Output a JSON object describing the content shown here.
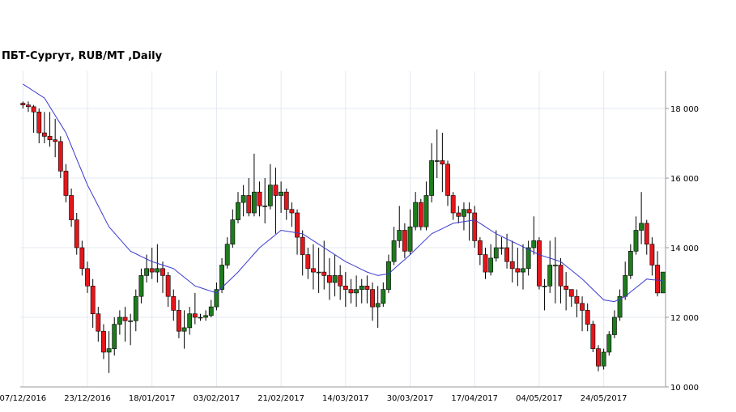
{
  "chart_data": {
    "type": "candlestick",
    "title": "ПБТ-Сургут,  RUB/MT ,Daily",
    "categories": [
      "07/12/2016",
      null,
      null,
      null,
      null,
      null,
      null,
      null,
      null,
      null,
      null,
      null,
      "23/12/2016",
      null,
      null,
      null,
      null,
      null,
      null,
      null,
      null,
      null,
      null,
      null,
      "18/01/2017",
      null,
      null,
      null,
      null,
      null,
      null,
      null,
      null,
      null,
      null,
      null,
      "03/02/2017",
      null,
      null,
      null,
      null,
      null,
      null,
      null,
      null,
      null,
      null,
      null,
      "21/02/2017",
      null,
      null,
      null,
      null,
      null,
      null,
      null,
      null,
      null,
      null,
      null,
      "14/03/2017",
      null,
      null,
      null,
      null,
      null,
      null,
      null,
      null,
      null,
      null,
      null,
      "30/03/2017",
      null,
      null,
      null,
      null,
      null,
      null,
      null,
      null,
      null,
      null,
      null,
      "17/04/2017",
      null,
      null,
      null,
      null,
      null,
      null,
      null,
      null,
      null,
      null,
      null,
      "04/05/2017",
      null,
      null,
      null,
      null,
      null,
      null,
      null,
      null,
      null,
      null,
      null,
      "24/05/2017",
      null,
      null,
      null,
      null,
      null,
      null,
      null,
      null,
      null,
      null,
      null
    ],
    "open": [
      18150,
      18100,
      18050,
      17900,
      17300,
      17200,
      17100,
      17050,
      16200,
      15500,
      14800,
      14000,
      13400,
      12900,
      12100,
      11600,
      11000,
      11100,
      11800,
      12000,
      11900,
      11900,
      12600,
      13200,
      13400,
      13300,
      13400,
      13200,
      12600,
      12200,
      11600,
      11700,
      12100,
      12000,
      12000,
      12050,
      12300,
      12800,
      13500,
      14100,
      14800,
      15300,
      15500,
      15000,
      15600,
      15200,
      15200,
      15800,
      15500,
      15600,
      15100,
      15000,
      14300,
      13800,
      13400,
      13300,
      13300,
      13200,
      13000,
      13200,
      12900,
      12800,
      12700,
      12800,
      12900,
      12800,
      12300,
      12400,
      12800,
      13600,
      14200,
      14500,
      13900,
      14600,
      15300,
      14600,
      15500,
      16500,
      16500,
      16400,
      15500,
      15000,
      14900,
      15100,
      15000,
      14200,
      13800,
      13300,
      13700,
      14000,
      14000,
      13600,
      13400,
      13300,
      13400,
      14000,
      14200,
      12900,
      12900,
      13500,
      13500,
      12900,
      12800,
      12600,
      12400,
      12200,
      11800,
      11100,
      10600,
      11000,
      11500,
      12000,
      12600,
      13200,
      13900,
      14500,
      14700,
      14100,
      13500,
      12700
    ],
    "high": [
      18200,
      18200,
      18100,
      18000,
      17900,
      17900,
      17700,
      17200,
      16400,
      15700,
      15000,
      14200,
      13600,
      13100,
      12300,
      11800,
      11600,
      12000,
      12200,
      12300,
      12100,
      12800,
      13400,
      13800,
      14000,
      14100,
      13600,
      13300,
      12800,
      12500,
      12200,
      12300,
      12700,
      12100,
      12200,
      12500,
      13000,
      13700,
      14300,
      15100,
      15600,
      15800,
      16000,
      16700,
      15900,
      16000,
      16400,
      16300,
      15900,
      15700,
      15300,
      15100,
      14500,
      14000,
      14100,
      14000,
      14200,
      13700,
      13800,
      13500,
      13300,
      13100,
      13200,
      13100,
      13200,
      13000,
      12900,
      13000,
      13800,
      14600,
      15200,
      14700,
      15100,
      15600,
      15400,
      15900,
      17000,
      17400,
      17300,
      16500,
      15600,
      15200,
      15300,
      15300,
      15200,
      14300,
      14000,
      14100,
      14500,
      14300,
      14400,
      14200,
      14000,
      14100,
      14200,
      14900,
      14300,
      13100,
      14200,
      14300,
      13700,
      13300,
      12800,
      12800,
      12600,
      12400,
      11900,
      11200,
      11100,
      11600,
      12200,
      12800,
      13600,
      14100,
      14900,
      15600,
      14800,
      14300,
      13900,
      13300
    ],
    "low": [
      18000,
      17900,
      17300,
      17000,
      17000,
      16900,
      16600,
      16000,
      15300,
      14600,
      13800,
      13200,
      12700,
      11700,
      11300,
      10800,
      10400,
      10900,
      11500,
      11300,
      11200,
      11600,
      12400,
      13000,
      13100,
      13000,
      12700,
      12300,
      11900,
      11400,
      11100,
      11500,
      11800,
      11900,
      11900,
      12000,
      12200,
      12700,
      13400,
      14000,
      14700,
      14900,
      14900,
      14900,
      14900,
      14700,
      15100,
      14400,
      15000,
      14800,
      14600,
      13800,
      13200,
      13100,
      12800,
      12700,
      12800,
      12500,
      12600,
      12500,
      12300,
      12400,
      12300,
      12400,
      12400,
      11900,
      11700,
      12300,
      12700,
      13500,
      14000,
      13700,
      13800,
      14500,
      14500,
      14500,
      15300,
      16000,
      15600,
      15200,
      14800,
      14700,
      14500,
      14200,
      14000,
      13500,
      13100,
      13200,
      13600,
      13800,
      13400,
      13000,
      12900,
      12800,
      13200,
      13800,
      12800,
      12200,
      12700,
      12400,
      12400,
      12200,
      12300,
      12000,
      11600,
      11600,
      11000,
      10450,
      10500,
      10900,
      11400,
      11900,
      12500,
      13100,
      13800,
      14100,
      13800,
      13200,
      12600,
      12700
    ],
    "close": [
      18100,
      18050,
      17900,
      17300,
      17200,
      17100,
      17050,
      16200,
      15500,
      14800,
      14000,
      13400,
      12900,
      12100,
      11600,
      11000,
      11100,
      11800,
      12000,
      11900,
      11900,
      12600,
      13200,
      13400,
      13300,
      13400,
      13200,
      12600,
      12200,
      11600,
      11700,
      12100,
      12000,
      12000,
      12050,
      12300,
      12800,
      13500,
      14100,
      14800,
      15300,
      15500,
      15000,
      15600,
      15200,
      15200,
      15800,
      15500,
      15600,
      15100,
      15000,
      14300,
      13800,
      13400,
      13300,
      13300,
      13200,
      13000,
      13200,
      12900,
      12800,
      12700,
      12800,
      12900,
      12800,
      12300,
      12400,
      12800,
      13600,
      14200,
      14500,
      13900,
      14600,
      15300,
      14600,
      15500,
      16500,
      16500,
      16400,
      15500,
      15000,
      14900,
      15100,
      15000,
      14200,
      13800,
      13300,
      13700,
      14000,
      14000,
      13600,
      13400,
      13300,
      13400,
      14000,
      14200,
      12900,
      12900,
      13500,
      13500,
      12900,
      12800,
      12600,
      12400,
      12200,
      11800,
      11100,
      10600,
      11000,
      11500,
      12000,
      12600,
      13200,
      13900,
      14500,
      14700,
      14100,
      13500,
      12700,
      13300
    ],
    "up_color": "#1e7b1e",
    "down_color": "#e3161b",
    "ma": {
      "color": "#3a3ad0",
      "values": [
        18700,
        18600,
        18500,
        18400,
        18300,
        18050,
        17800,
        17550,
        17300,
        16925,
        16550,
        16175,
        15800,
        15500,
        15200,
        14900,
        14600,
        14425,
        14250,
        14075,
        13900,
        13825,
        13750,
        13675,
        13600,
        13550,
        13500,
        13450,
        13400,
        13275,
        13150,
        13025,
        12900,
        12850,
        12800,
        12750,
        12700,
        12850,
        13000,
        13150,
        13300,
        13475,
        13650,
        13825,
        14000,
        14125,
        14250,
        14375,
        14500,
        14475,
        14450,
        14425,
        14400,
        14300,
        14200,
        14100,
        14000,
        13900,
        13800,
        13700,
        13600,
        13525,
        13450,
        13375,
        13300,
        13250,
        13200,
        13225,
        13250,
        13390,
        13525,
        13660,
        13800,
        13950,
        14100,
        14250,
        14400,
        14475,
        14550,
        14625,
        14700,
        14725,
        14750,
        14775,
        14800,
        14700,
        14600,
        14500,
        14400,
        14325,
        14250,
        14175,
        14100,
        14025,
        13950,
        13875,
        13800,
        13750,
        13700,
        13650,
        13600,
        13475,
        13350,
        13225,
        13100,
        12950,
        12800,
        12650,
        12500,
        12475,
        12450,
        12525,
        12600,
        12725,
        12850,
        12975,
        13100,
        13080,
        13070,
        13050
      ]
    },
    "ylim": [
      10000,
      19000
    ],
    "yticks": [
      {
        "value": 10000,
        "label": "10 000"
      },
      {
        "value": 12000,
        "label": "12 000"
      },
      {
        "value": 14000,
        "label": "14 000"
      },
      {
        "value": 16000,
        "label": "16 000"
      },
      {
        "value": 18000,
        "label": "18 000"
      }
    ],
    "grid": true
  }
}
